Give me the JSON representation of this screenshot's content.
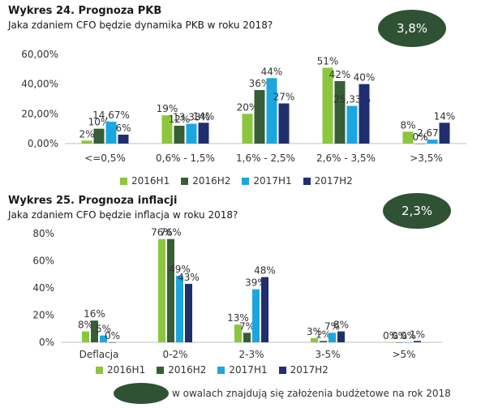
{
  "colors": {
    "badge": "#2f5234",
    "axis": "#bfbfbf",
    "series": [
      "#8cc63e",
      "#375e37",
      "#1ca6df",
      "#1f2f6e"
    ]
  },
  "legend_labels": [
    "2016H1",
    "2016H2",
    "2017H1",
    "2017H2"
  ],
  "footnote": {
    "text": "w owalach znajdują się założenia budżetowe na rok 2018"
  },
  "chart_data": [
    {
      "type": "bar",
      "title": "Wykres 24. Prognoza PKB",
      "subtitle": "Jaka zdaniem CFO będzie dynamika PKB w roku 2018?",
      "badge": "3,8%",
      "categories": [
        "<=0,5%",
        "0,6% - 1,5%",
        "1,6% - 2,5%",
        "2,6% - 3,5%",
        ">3,5%"
      ],
      "yticks": [
        "0,00%",
        "20,00%",
        "40,00%",
        "60,00%"
      ],
      "ylim": [
        0,
        60
      ],
      "grid": false,
      "legend": "bottom",
      "series": [
        {
          "name": "2016H1",
          "values": [
            2,
            19,
            20,
            51,
            8
          ],
          "labels": [
            "2%",
            "19%",
            "20%",
            "51%",
            "8%"
          ]
        },
        {
          "name": "2016H2",
          "values": [
            10,
            12,
            36,
            42,
            0
          ],
          "labels": [
            "10%",
            "12%",
            "36%",
            "42%",
            "0%"
          ]
        },
        {
          "name": "2017H1",
          "values": [
            14.67,
            13.33,
            44,
            25.33,
            2.67
          ],
          "labels": [
            "14,67%",
            "13,33%",
            "44%",
            "25,33%",
            "2,67%"
          ]
        },
        {
          "name": "2017H2",
          "values": [
            6,
            14,
            27,
            40,
            14
          ],
          "labels": [
            "6%",
            "14%",
            "27%",
            "40%",
            "14%"
          ]
        }
      ]
    },
    {
      "type": "bar",
      "title": "Wykres 25. Prognoza inflacji",
      "subtitle": "Jaka zdaniem CFO będzie inflacja w roku 2018?",
      "badge": "2,3%",
      "categories": [
        "Deflacja",
        "0-2%",
        "2-3%",
        "3-5%",
        ">5%"
      ],
      "yticks": [
        "0%",
        "20%",
        "40%",
        "60%",
        "80%"
      ],
      "ylim": [
        0,
        80
      ],
      "grid": false,
      "legend": "bottom",
      "series": [
        {
          "name": "2016H1",
          "values": [
            8,
            76,
            13,
            3,
            0
          ],
          "labels": [
            "8%",
            "76%",
            "13%",
            "3%",
            "0%"
          ]
        },
        {
          "name": "2016H2",
          "values": [
            16,
            76,
            7,
            1,
            0
          ],
          "labels": [
            "16%",
            "76%",
            "7%",
            "1%",
            "0%"
          ]
        },
        {
          "name": "2017H1",
          "values": [
            5,
            49,
            39,
            7,
            0
          ],
          "labels": [
            "5%",
            "49%",
            "39%",
            "7%",
            "0%"
          ]
        },
        {
          "name": "2017H2",
          "values": [
            0,
            43,
            48,
            8,
            1
          ],
          "labels": [
            "0%",
            "43%",
            "48%",
            "8%",
            "1%"
          ]
        }
      ]
    }
  ]
}
